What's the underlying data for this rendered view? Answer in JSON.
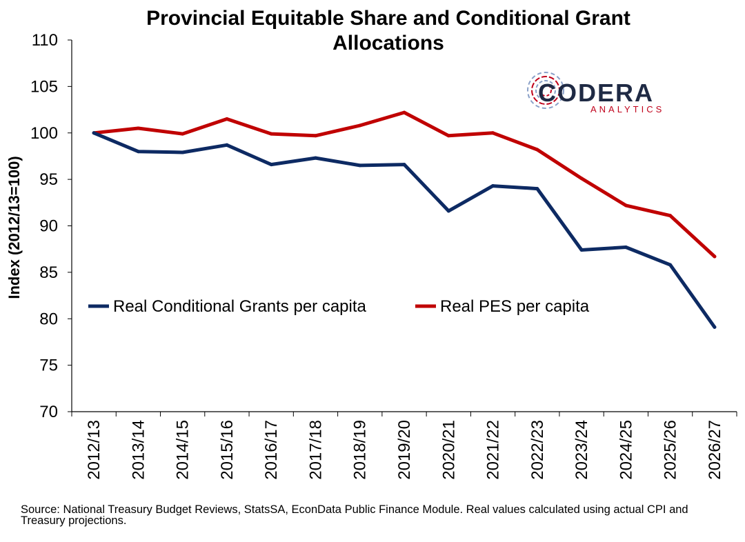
{
  "brand": {
    "name": "CODERA",
    "sub": "ANALYTICS",
    "primary_color": "#1f2a44",
    "accent_color": "#c0001a"
  },
  "source_note": "Source: National Treasury Budget Reviews, StatsSA, EconData Public Finance Module. Real values calculated using actual CPI and Treasury projections.",
  "chart_data": {
    "type": "line",
    "title_lines": [
      "Provincial Equitable Share and Conditional Grant",
      "Allocations"
    ],
    "ylabel": "Index (2012/13=100)",
    "xlabel": "",
    "ylim": [
      70,
      110
    ],
    "yticks": [
      70,
      75,
      80,
      85,
      90,
      95,
      100,
      105,
      110
    ],
    "grid": false,
    "legend_position": "lower-middle",
    "categories": [
      "2012/13",
      "2013/14",
      "2014/15",
      "2015/16",
      "2016/17",
      "2017/18",
      "2018/19",
      "2019/20",
      "2020/21",
      "2021/22",
      "2022/23",
      "2023/24",
      "2024/25",
      "2025/26",
      "2026/27"
    ],
    "series": [
      {
        "name": "Real Conditional Grants per capita",
        "color": "#0d2a63",
        "values": [
          100.0,
          98.0,
          97.9,
          98.7,
          96.6,
          97.3,
          96.5,
          96.6,
          91.6,
          94.3,
          94.0,
          87.4,
          87.7,
          85.8,
          79.1
        ]
      },
      {
        "name": "Real PES per capita",
        "color": "#c00000",
        "values": [
          100.0,
          100.5,
          99.9,
          101.5,
          99.9,
          99.7,
          100.8,
          102.2,
          99.7,
          100.0,
          98.2,
          95.1,
          92.2,
          91.1,
          86.7
        ]
      }
    ]
  }
}
